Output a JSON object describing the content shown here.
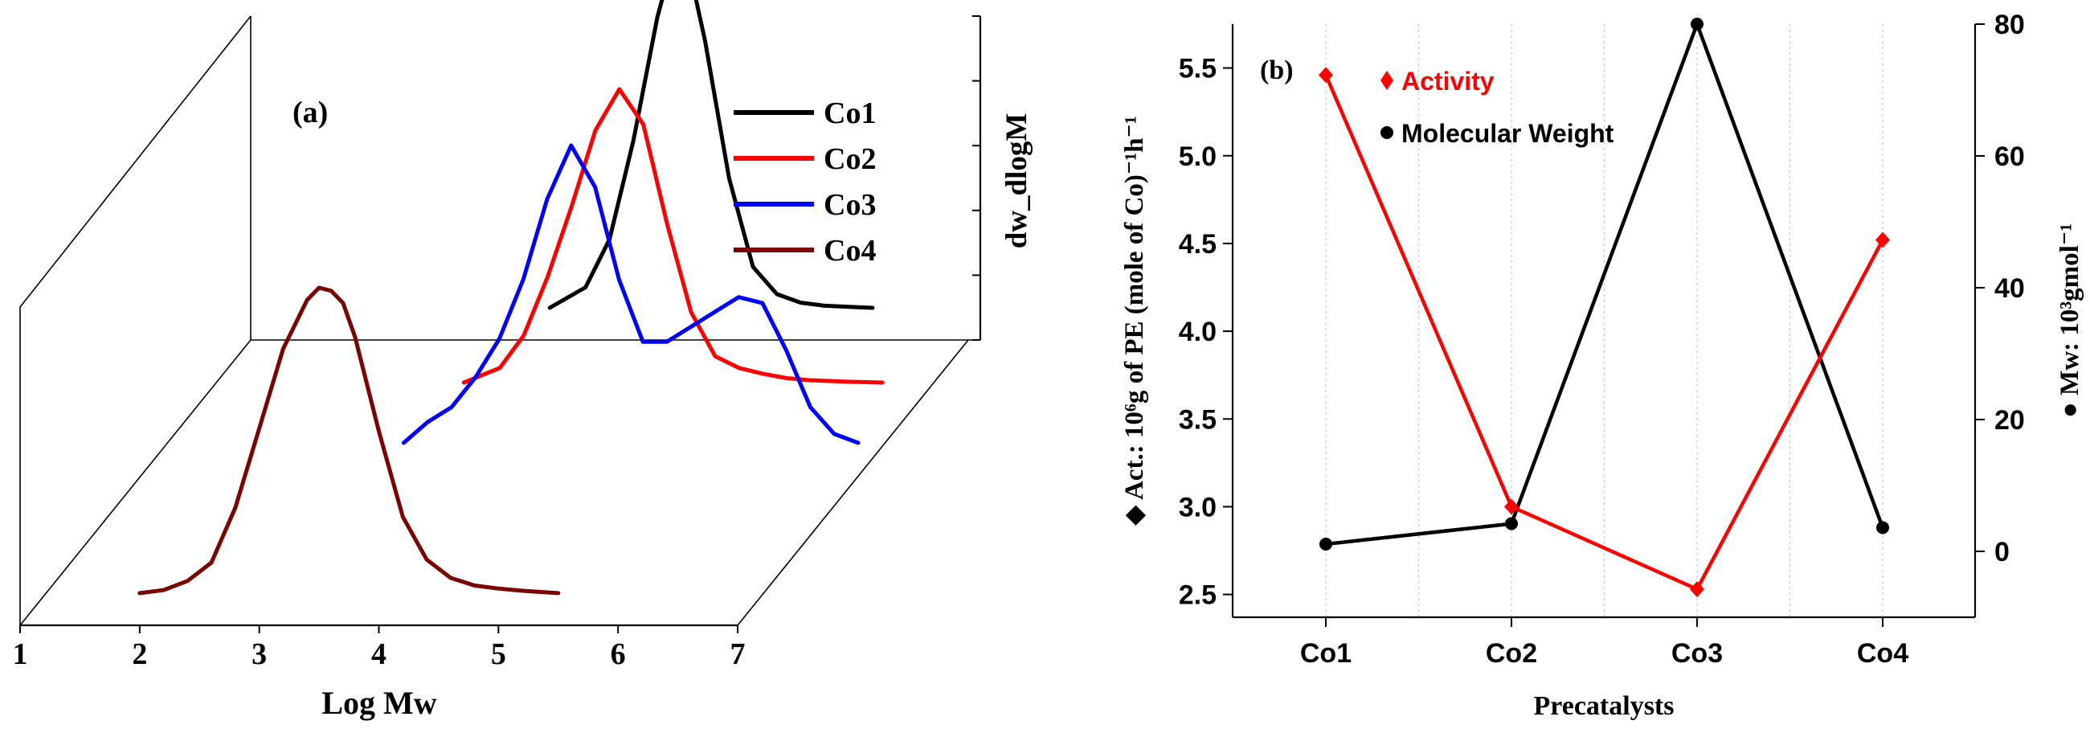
{
  "chart_data": [
    {
      "panel_label": "(a)",
      "type": "line",
      "view": "3d-waterfall",
      "xlabel": "Log Mw",
      "zlabel": "dw_dlogM",
      "xlim": [
        1,
        7
      ],
      "xticks": [
        "1",
        "2",
        "3",
        "4",
        "5",
        "6",
        "7"
      ],
      "legend_position": "top-right",
      "grid": false,
      "series": [
        {
          "name": "Co1",
          "color": "#000000",
          "x": [
            3.5,
            3.8,
            4.0,
            4.2,
            4.4,
            4.5,
            4.6,
            4.7,
            4.8,
            5.0,
            5.2,
            5.4,
            5.6,
            5.8,
            6.0,
            6.2
          ],
          "y": [
            0.0,
            0.06,
            0.2,
            0.49,
            0.85,
            0.98,
            1.0,
            0.94,
            0.78,
            0.38,
            0.12,
            0.04,
            0.015,
            0.006,
            0.003,
            0.0
          ]
        },
        {
          "name": "Co2",
          "color": "#ff0000",
          "x": [
            3.3,
            3.6,
            3.8,
            4.0,
            4.2,
            4.4,
            4.6,
            4.8,
            5.0,
            5.2,
            5.4,
            5.6,
            5.8,
            6.0,
            6.2,
            6.5,
            6.8
          ],
          "y": [
            0.0,
            0.05,
            0.16,
            0.36,
            0.6,
            0.86,
            1.0,
            0.88,
            0.54,
            0.24,
            0.09,
            0.05,
            0.03,
            0.015,
            0.008,
            0.003,
            0.0
          ]
        },
        {
          "name": "Co3",
          "color": "#0000ff",
          "x": [
            3.2,
            3.4,
            3.6,
            3.8,
            4.0,
            4.2,
            4.4,
            4.6,
            4.8,
            5.0,
            5.2,
            5.4,
            5.6,
            5.8,
            6.0,
            6.2,
            6.4,
            6.6,
            6.8,
            7.0
          ],
          "y": [
            0.0,
            0.07,
            0.12,
            0.22,
            0.35,
            0.55,
            0.82,
            1.0,
            0.86,
            0.55,
            0.34,
            0.34,
            0.39,
            0.44,
            0.49,
            0.47,
            0.31,
            0.12,
            0.03,
            0.0
          ]
        },
        {
          "name": "Co4",
          "color": "#7b0000",
          "x": [
            2.0,
            2.2,
            2.4,
            2.6,
            2.8,
            3.0,
            3.2,
            3.4,
            3.5,
            3.6,
            3.7,
            3.8,
            4.0,
            4.2,
            4.4,
            4.6,
            4.8,
            5.0,
            5.2,
            5.5
          ],
          "y": [
            0.0,
            0.01,
            0.04,
            0.1,
            0.28,
            0.54,
            0.8,
            0.96,
            1.0,
            0.99,
            0.95,
            0.84,
            0.53,
            0.25,
            0.11,
            0.05,
            0.025,
            0.015,
            0.008,
            0.0
          ]
        }
      ]
    },
    {
      "panel_label": "(b)",
      "type": "line",
      "xlabel": "Precatalysts",
      "ylabel": "◆ Act.: 10⁶g of PE (mole of Co)⁻¹h⁻¹",
      "y2label": "● Mw: 10³gmol⁻¹",
      "categories": [
        "Co1",
        "Co2",
        "Co3",
        "Co4"
      ],
      "ylim": [
        2.37,
        5.75
      ],
      "yticks": [
        2.5,
        3.0,
        3.5,
        4.0,
        4.5,
        5.0,
        5.5
      ],
      "y2lim": [
        -10,
        80
      ],
      "y2ticks": [
        0,
        20,
        40,
        60,
        80
      ],
      "grid": "vertical-dotted",
      "legend_position": "top-left",
      "series": [
        {
          "name": "Activity",
          "axis": "left",
          "marker": "diamond",
          "color": "#ff0000",
          "values": [
            5.46,
            3.0,
            2.53,
            4.52
          ]
        },
        {
          "name": "Molecular Weight",
          "axis": "right",
          "marker": "circle",
          "color": "#000000",
          "values": [
            1.1,
            4.2,
            80,
            3.6
          ]
        }
      ]
    }
  ]
}
